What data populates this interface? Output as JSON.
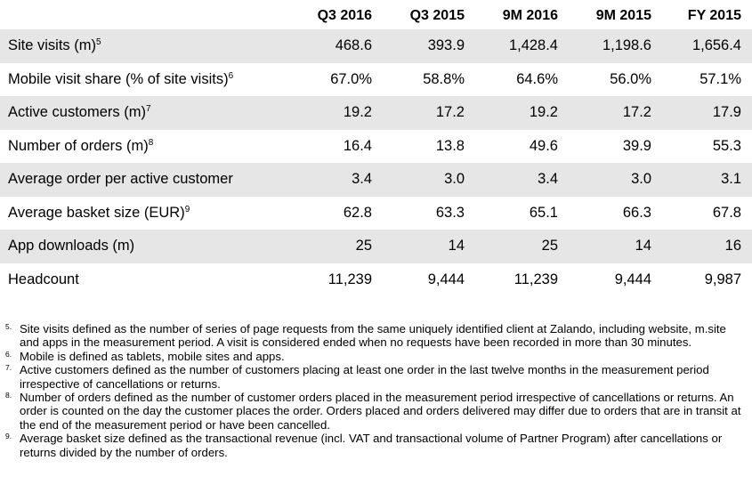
{
  "table": {
    "columns": [
      "",
      "Q3 2016",
      "Q3 2015",
      "9M 2016",
      "9M 2015",
      "FY 2015"
    ],
    "rows": [
      {
        "label": "Site visits (m)",
        "ref": "5",
        "values": [
          "468.6",
          "393.9",
          "1,428.4",
          "1,198.6",
          "1,656.4"
        ]
      },
      {
        "label": "Mobile visit share (% of site visits)",
        "ref": "6",
        "values": [
          "67.0%",
          "58.8%",
          "64.6%",
          "56.0%",
          "57.1%"
        ]
      },
      {
        "label": "Active customers (m)",
        "ref": "7",
        "values": [
          "19.2",
          "17.2",
          "19.2",
          "17.2",
          "17.9"
        ]
      },
      {
        "label": "Number of orders (m)",
        "ref": "8",
        "values": [
          "16.4",
          "13.8",
          "49.6",
          "39.9",
          "55.3"
        ]
      },
      {
        "label": "Average order per active customer",
        "ref": "",
        "values": [
          "3.4",
          "3.0",
          "3.4",
          "3.0",
          "3.1"
        ]
      },
      {
        "label": "Average basket size (EUR)",
        "ref": "9",
        "values": [
          "62.8",
          "63.3",
          "65.1",
          "66.3",
          "67.8"
        ]
      },
      {
        "label": "App downloads (m)",
        "ref": "",
        "values": [
          "25",
          "14",
          "25",
          "14",
          "16"
        ]
      },
      {
        "label": "Headcount",
        "ref": "",
        "values": [
          "11,239",
          "9,444",
          "11,239",
          "9,444",
          "9,987"
        ]
      }
    ]
  },
  "footnotes": [
    {
      "mark": "5.",
      "text": "Site visits defined as the number of series of page requests from the same uniquely identified client at Zalando, including website, m.site and apps in the measurement period. A visit is considered ended when no requests have been recorded in more than 30 minutes."
    },
    {
      "mark": "6.",
      "text": "Mobile is defined as tablets, mobile sites and apps."
    },
    {
      "mark": "7.",
      "text": "Active customers defined as the number of customers placing at least one order in the last twelve months in the measurement period irrespective of cancellations or returns."
    },
    {
      "mark": "8.",
      "text": "Number of orders defined as the number of customer orders placed in the measurement period irrespective of cancellations or returns. An order is counted on the day the customer places the order. Orders placed and orders delivered may differ due to orders that are in transit at the end of the measurement period or have been cancelled."
    },
    {
      "mark": "9.",
      "text": "Average basket size defined as the transactional revenue (incl. VAT and transactional volume of Partner Program) after cancellations or returns divided by the number of orders."
    }
  ]
}
